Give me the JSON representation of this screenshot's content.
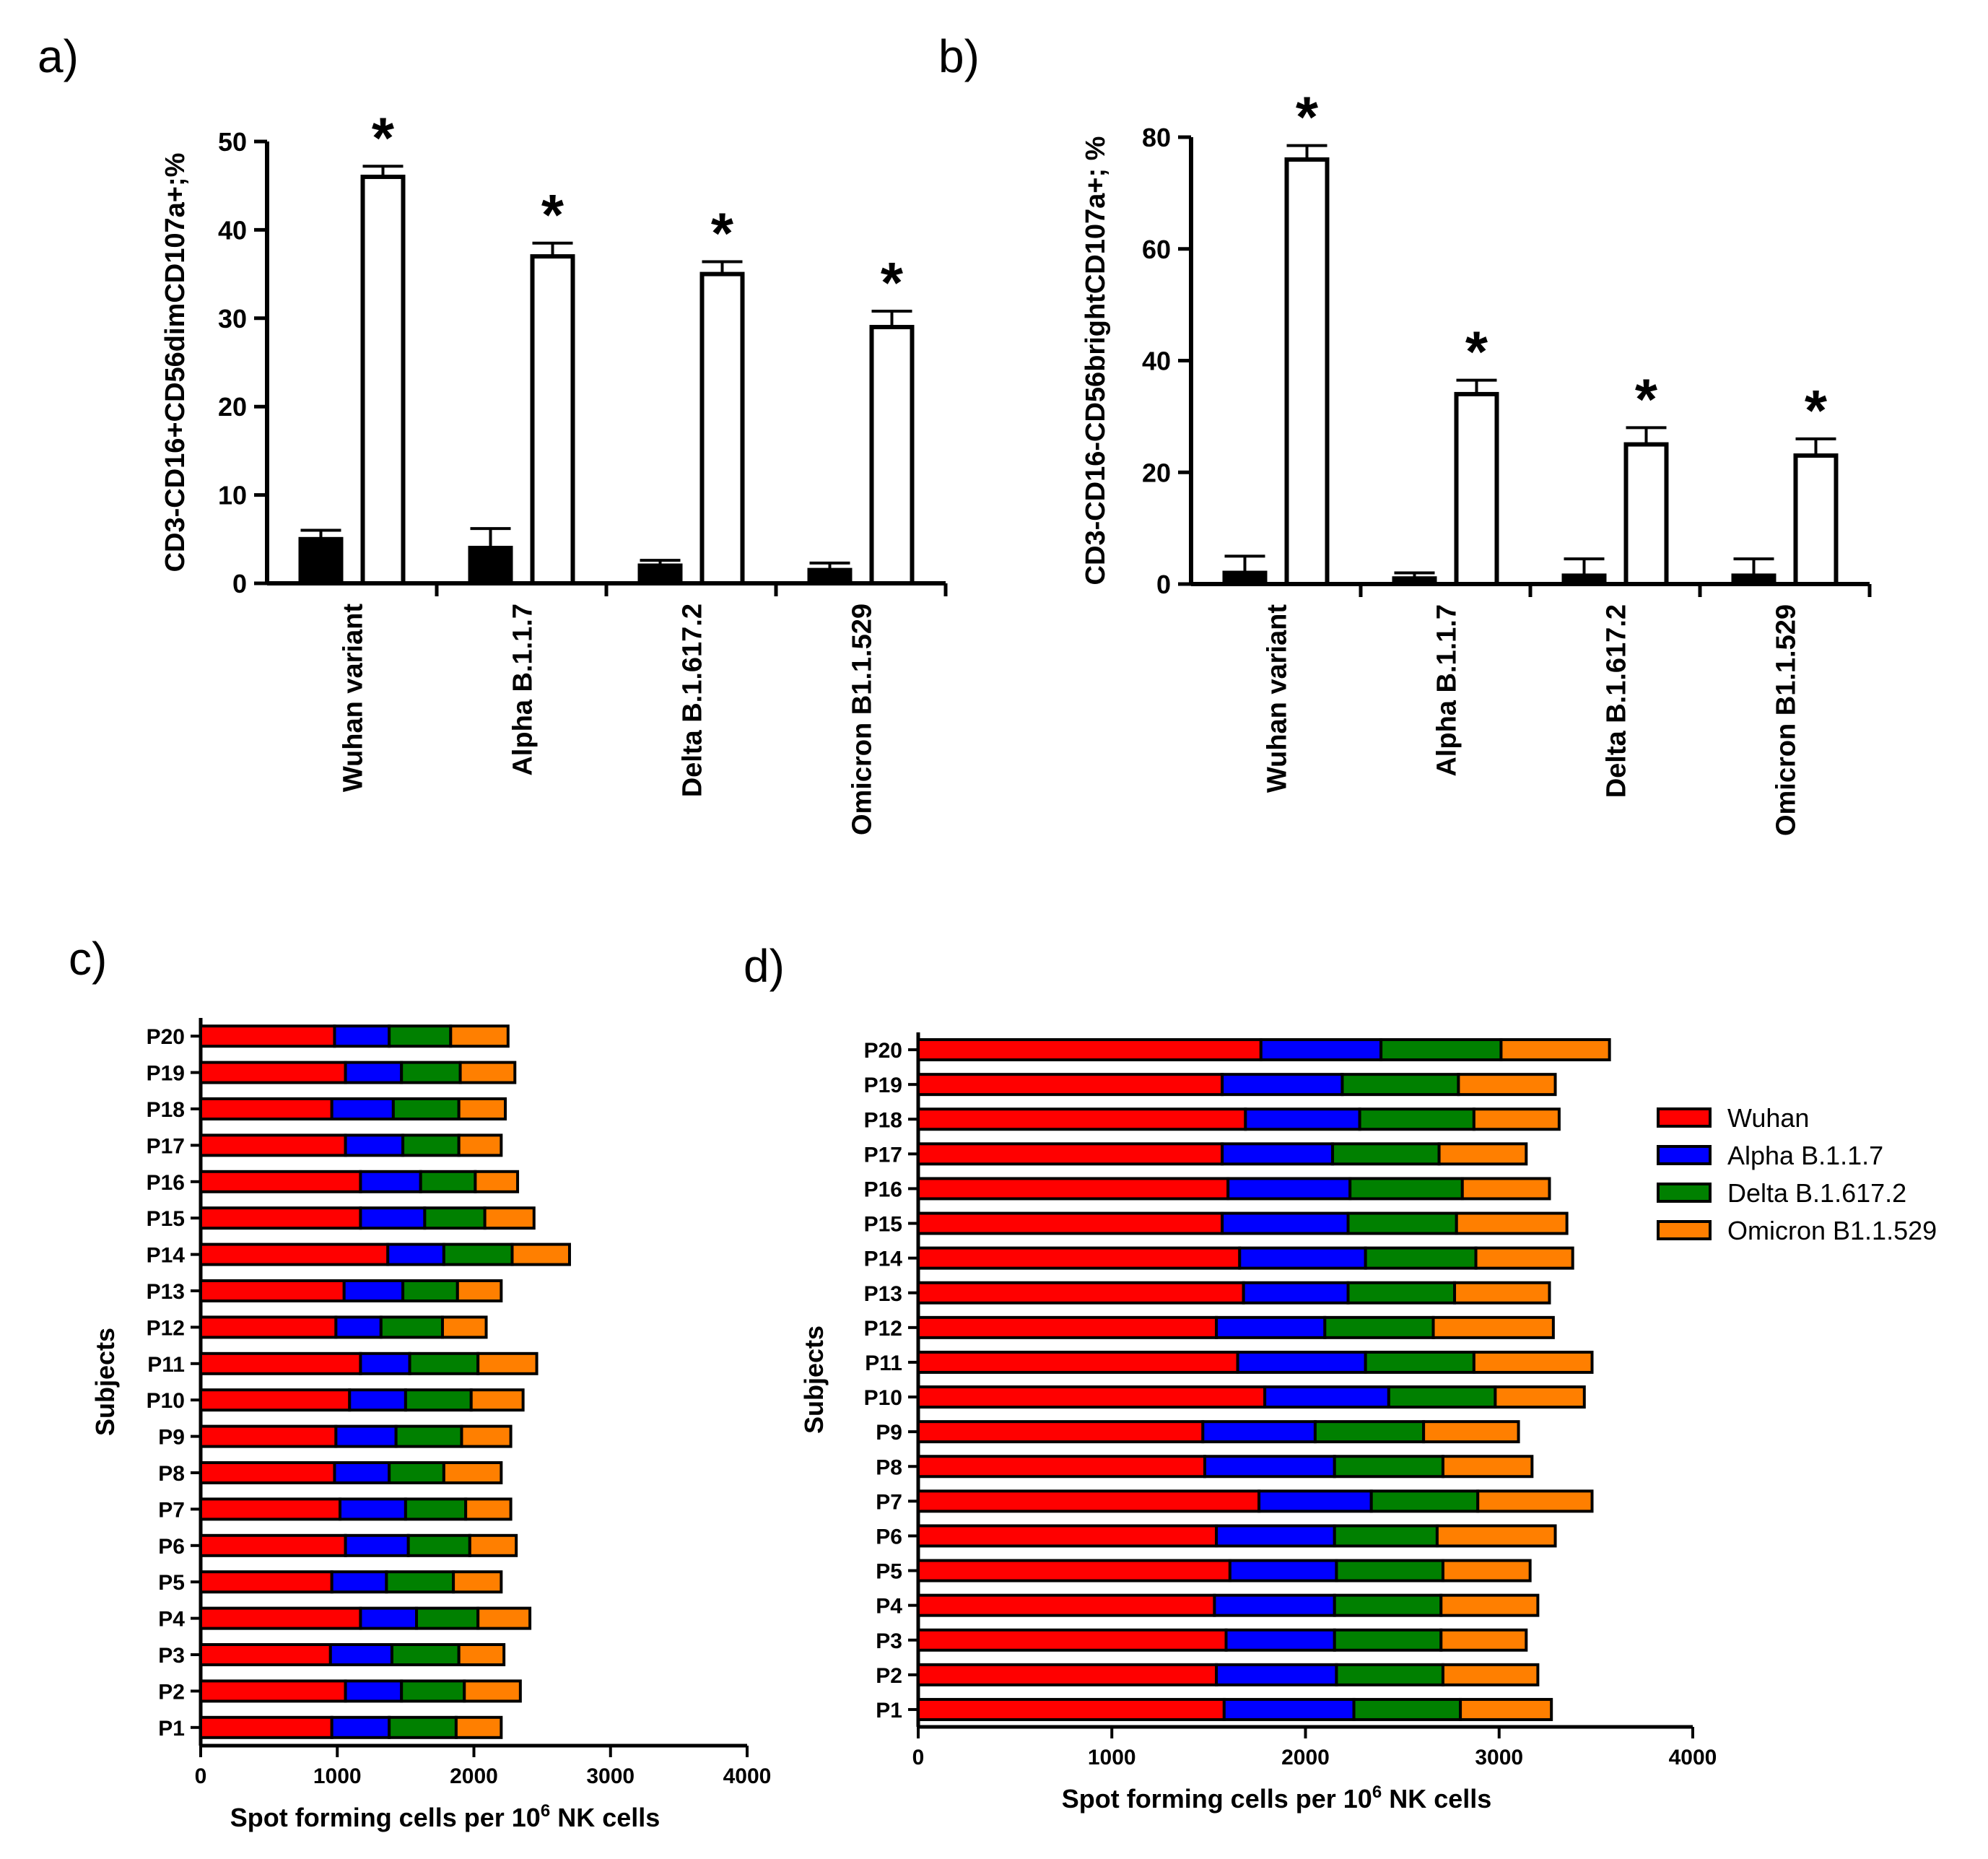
{
  "panels": {
    "a": "a)",
    "b": "b)",
    "c": "c)",
    "d": "d)"
  },
  "chart_data": [
    {
      "id": "a",
      "type": "bar",
      "ylabel": "CD3-CD16+CD56dimCD107a+;%",
      "ylim": [
        0,
        50
      ],
      "yticks": [
        0,
        10,
        20,
        30,
        40,
        50
      ],
      "categories": [
        "Wuhan variant",
        "Alpha B.1.1.7",
        "Delta B.1.617.2",
        "Omicron B1.1.529"
      ],
      "series": [
        {
          "fill": "#000000",
          "values": [
            5,
            4,
            2,
            1.5
          ],
          "errors": [
            1,
            2.2,
            0.6,
            0.8
          ]
        },
        {
          "fill": "#ffffff",
          "values": [
            46,
            37,
            35,
            29
          ],
          "errors": [
            1.2,
            1.5,
            1.4,
            1.8
          ]
        }
      ],
      "significance": [
        "*",
        "*",
        "*",
        "*"
      ]
    },
    {
      "id": "b",
      "type": "bar",
      "ylabel": "CD3-CD16-CD56brightCD107a+; %",
      "ylim": [
        0,
        80
      ],
      "yticks": [
        0,
        20,
        40,
        60,
        80
      ],
      "categories": [
        "Wuhan variant",
        "Alpha B.1.1.7",
        "Delta B.1.617.2",
        "Omicron B1.1.529"
      ],
      "series": [
        {
          "fill": "#000000",
          "values": [
            2,
            1,
            1.5,
            1.5
          ],
          "errors": [
            3,
            1,
            3,
            3
          ]
        },
        {
          "fill": "#ffffff",
          "values": [
            76,
            34,
            25,
            23
          ],
          "errors": [
            2.5,
            2.5,
            3,
            3
          ]
        }
      ],
      "significance": [
        "*",
        "*",
        "*",
        "*"
      ]
    },
    {
      "id": "c",
      "type": "bar",
      "orientation": "horizontal",
      "stacked": true,
      "xlabel": "Spot forming cells per 10^6 NK cells",
      "xlabel_prefix": "Spot forming cells per  10",
      "xlabel_exp": "6",
      "xlabel_suffix": " NK cells",
      "ylabel": "Subjects",
      "xlim": [
        0,
        4000
      ],
      "xticks": [
        0,
        1000,
        2000,
        3000,
        4000
      ],
      "categories": [
        "P1",
        "P2",
        "P3",
        "P4",
        "P5",
        "P6",
        "P7",
        "P8",
        "P9",
        "P10",
        "P11",
        "P12",
        "P13",
        "P14",
        "P15",
        "P16",
        "P17",
        "P18",
        "P19",
        "P20"
      ],
      "series": [
        {
          "name": "Wuhan",
          "color": "#ff0000",
          "values": [
            960,
            1060,
            950,
            1170,
            960,
            1060,
            1020,
            980,
            990,
            1090,
            1170,
            990,
            1050,
            1370,
            1170,
            1170,
            1060,
            960,
            1060,
            980
          ]
        },
        {
          "name": "Alpha B.1.1.7",
          "color": "#0000ff",
          "values": [
            420,
            410,
            450,
            410,
            400,
            460,
            480,
            400,
            440,
            410,
            360,
            330,
            430,
            410,
            470,
            440,
            420,
            450,
            410,
            400
          ]
        },
        {
          "name": "Delta B.1.617.2",
          "color": "#008000",
          "values": [
            490,
            460,
            490,
            450,
            490,
            450,
            440,
            400,
            480,
            480,
            500,
            450,
            400,
            500,
            440,
            400,
            410,
            480,
            430,
            450
          ]
        },
        {
          "name": "Omicron B1.1.529",
          "color": "#ff7f00",
          "values": [
            330,
            410,
            330,
            380,
            350,
            340,
            330,
            420,
            360,
            380,
            430,
            320,
            320,
            420,
            360,
            310,
            310,
            340,
            400,
            420
          ]
        }
      ]
    },
    {
      "id": "d",
      "type": "bar",
      "orientation": "horizontal",
      "stacked": true,
      "xlabel": "Spot forming cells per 10^6 NK cells",
      "xlabel_prefix": "Spot forming cells per  10",
      "xlabel_exp": "6",
      "xlabel_suffix": " NK cells",
      "ylabel": "Subjects",
      "xlim": [
        0,
        4000
      ],
      "xticks": [
        0,
        1000,
        2000,
        3000,
        4000
      ],
      "categories": [
        "P1",
        "P2",
        "P3",
        "P4",
        "P5",
        "P6",
        "P7",
        "P8",
        "P9",
        "P10",
        "P11",
        "P12",
        "P13",
        "P14",
        "P15",
        "P16",
        "P17",
        "P18",
        "P19",
        "P20"
      ],
      "series": [
        {
          "name": "Wuhan",
          "color": "#ff0000",
          "values": [
            1580,
            1540,
            1590,
            1530,
            1610,
            1540,
            1760,
            1480,
            1470,
            1790,
            1650,
            1540,
            1680,
            1660,
            1570,
            1600,
            1570,
            1690,
            1570,
            1770
          ]
        },
        {
          "name": "Alpha B.1.1.7",
          "color": "#0000ff",
          "values": [
            670,
            620,
            560,
            620,
            550,
            610,
            580,
            670,
            580,
            640,
            660,
            560,
            540,
            650,
            650,
            630,
            570,
            590,
            620,
            620
          ]
        },
        {
          "name": "Delta B.1.617.2",
          "color": "#008000",
          "values": [
            550,
            550,
            550,
            550,
            550,
            530,
            550,
            560,
            560,
            550,
            560,
            560,
            550,
            570,
            560,
            580,
            550,
            590,
            600,
            620
          ]
        },
        {
          "name": "Omicron B1.1.529",
          "color": "#ff7f00",
          "values": [
            470,
            490,
            440,
            500,
            450,
            610,
            590,
            460,
            490,
            460,
            610,
            620,
            490,
            500,
            570,
            450,
            450,
            440,
            500,
            560
          ]
        }
      ],
      "legend": {
        "position": "right",
        "entries": [
          "Wuhan",
          "Alpha B.1.1.7",
          "Delta B.1.617.2",
          "Omicron B1.1.529"
        ]
      }
    }
  ]
}
